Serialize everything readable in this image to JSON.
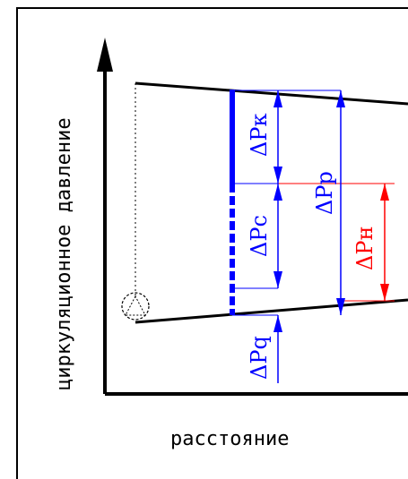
{
  "labels": {
    "y_axis": "циркуляционное давление",
    "x_axis": "расстояние",
    "dp_k": "ΔPк",
    "dp_c": "ΔPс",
    "dp_p": "ΔPр",
    "dp_n": "ΔPн",
    "dp_q": "ΔPq"
  },
  "colors": {
    "axis": "#000000",
    "blue": "#0000ff",
    "red": "#ff0000",
    "border": "#000000"
  },
  "icons": {
    "pump": "dashed-circle-triangle-icon"
  }
}
